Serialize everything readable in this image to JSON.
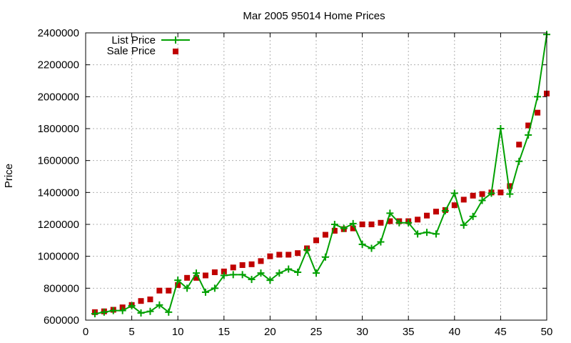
{
  "chart_data": {
    "type": "line",
    "title": "Mar 2005 95014 Home Prices",
    "xlabel": "",
    "ylabel": "Price",
    "xlim": [
      0,
      50
    ],
    "ylim": [
      600000,
      2400000
    ],
    "grid": true,
    "legend_position": "top-left",
    "x_ticks": [
      "0",
      "5",
      "10",
      "15",
      "20",
      "25",
      "30",
      "35",
      "40",
      "45",
      "50"
    ],
    "y_ticks": [
      "600000",
      "800000",
      "1000000",
      "1200000",
      "1400000",
      "1600000",
      "1800000",
      "2000000",
      "2200000",
      "2400000"
    ],
    "series": [
      {
        "name": "List Price",
        "style": "lines-points",
        "marker": "plus",
        "color": "#00a000",
        "x": [
          1,
          2,
          3,
          4,
          5,
          6,
          7,
          8,
          9,
          10,
          11,
          12,
          13,
          14,
          15,
          16,
          17,
          18,
          19,
          20,
          21,
          22,
          23,
          24,
          25,
          26,
          27,
          28,
          29,
          30,
          31,
          32,
          33,
          34,
          35,
          36,
          37,
          38,
          39,
          40,
          41,
          42,
          43,
          44,
          45,
          46,
          47,
          48,
          49,
          50
        ],
        "y": [
          640000,
          650000,
          660000,
          660000,
          690000,
          645000,
          655000,
          695000,
          650000,
          850000,
          800000,
          895000,
          775000,
          800000,
          880000,
          885000,
          885000,
          855000,
          895000,
          850000,
          895000,
          920000,
          900000,
          1040000,
          895000,
          995000,
          1200000,
          1175000,
          1205000,
          1075000,
          1050000,
          1090000,
          1270000,
          1210000,
          1210000,
          1140000,
          1150000,
          1140000,
          1285000,
          1395000,
          1195000,
          1250000,
          1350000,
          1395000,
          1800000,
          1390000,
          1595000,
          1760000,
          2000000,
          2390000
        ]
      },
      {
        "name": "Sale Price",
        "style": "points",
        "marker": "square",
        "color": "#c00000",
        "x": [
          1,
          2,
          3,
          4,
          5,
          6,
          7,
          8,
          9,
          10,
          11,
          12,
          13,
          14,
          15,
          16,
          17,
          18,
          19,
          20,
          21,
          22,
          23,
          24,
          25,
          26,
          27,
          28,
          29,
          30,
          31,
          32,
          33,
          34,
          35,
          36,
          37,
          38,
          39,
          40,
          41,
          42,
          43,
          44,
          45,
          46,
          47,
          48,
          49,
          50
        ],
        "y": [
          650000,
          655000,
          665000,
          680000,
          695000,
          720000,
          730000,
          785000,
          785000,
          820000,
          865000,
          865000,
          880000,
          900000,
          905000,
          930000,
          945000,
          950000,
          970000,
          1000000,
          1010000,
          1010000,
          1020000,
          1050000,
          1100000,
          1135000,
          1160000,
          1170000,
          1175000,
          1200000,
          1200000,
          1210000,
          1220000,
          1220000,
          1220000,
          1230000,
          1255000,
          1280000,
          1290000,
          1320000,
          1355000,
          1380000,
          1390000,
          1400000,
          1400000,
          1440000,
          1700000,
          1820000,
          1900000,
          2020000
        ]
      }
    ]
  }
}
